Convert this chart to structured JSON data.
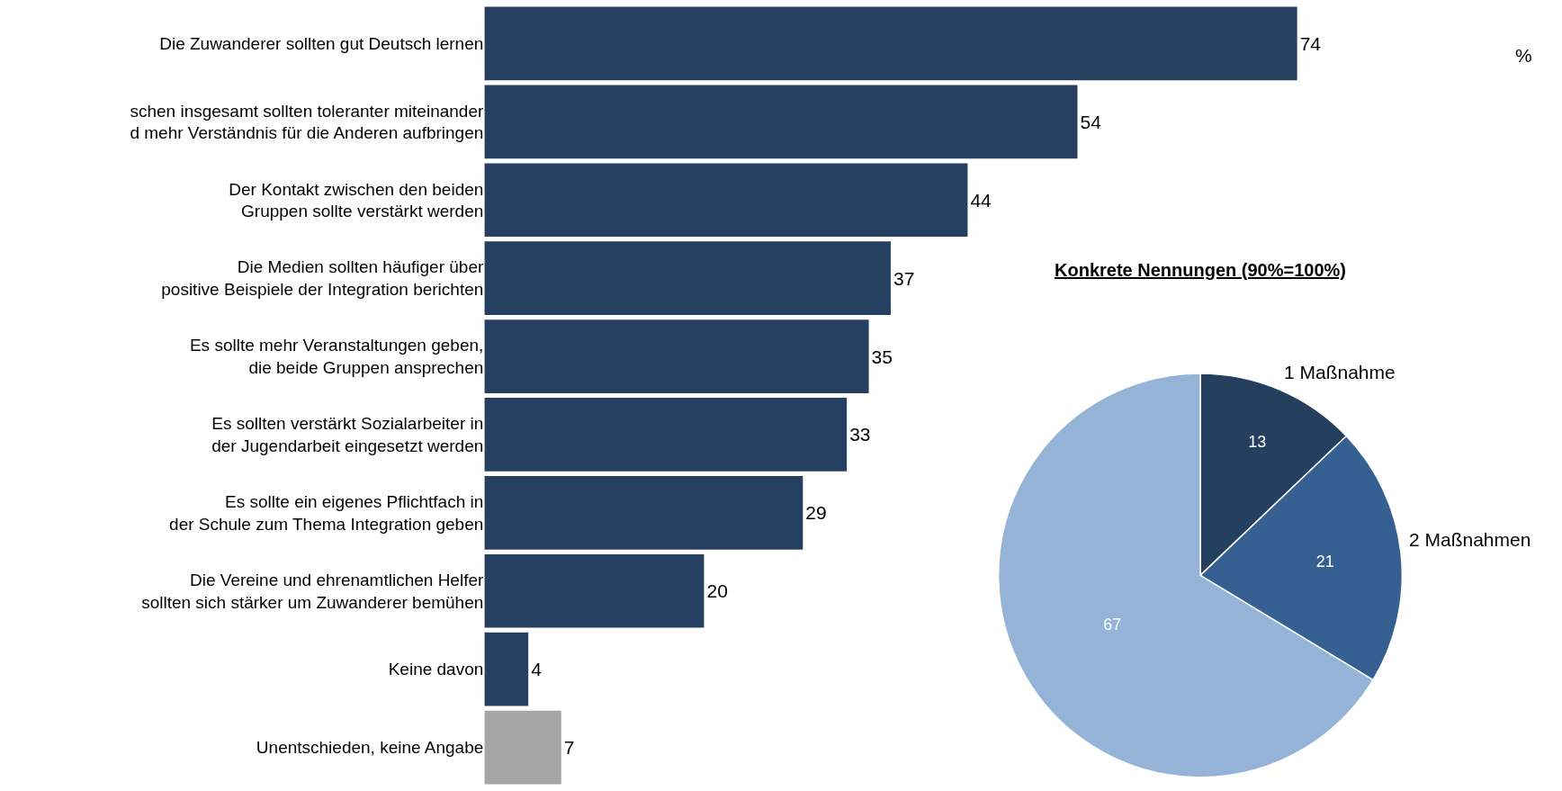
{
  "chart_data": [
    {
      "type": "bar",
      "orientation": "horizontal",
      "categories": [
        "Die Zuwanderer sollten gut Deutsch lernen",
        "schen insgesamt sollten toleranter miteinander\nd mehr Verständnis für die Anderen aufbringen",
        "Der Kontakt zwischen den beiden\nGruppen sollte verstärkt werden",
        "Die Medien sollten häufiger über\npositive Beispiele der Integration berichten",
        "Es sollte mehr Veranstaltungen geben,\ndie beide Gruppen ansprechen",
        "Es sollten verstärkt Sozialarbeiter in\nder Jugendarbeit eingesetzt werden",
        "Es sollte ein eigenes Pflichtfach in\nder Schule zum Thema Integration geben",
        "Die Vereine und ehrenamtlichen Helfer\nsollten sich stärker um Zuwanderer bemühen",
        "Keine davon",
        "Unentschieden, keine Angabe"
      ],
      "values": [
        74,
        54,
        44,
        37,
        35,
        33,
        29,
        20,
        4,
        7
      ],
      "colors": [
        "#264061",
        "#264061",
        "#264061",
        "#264061",
        "#264061",
        "#264061",
        "#264061",
        "#264061",
        "#264061",
        "#a6a6a6"
      ],
      "data_labels": true,
      "annotations": [
        "%"
      ]
    },
    {
      "type": "pie",
      "title": "Konkrete Nennungen (90%=100%)",
      "categories": [
        "1 Maßnahme",
        "2 Maßnahmen",
        null
      ],
      "values": [
        13,
        21,
        67
      ],
      "colors": [
        "#253f5f",
        "#366092",
        "#95b3d7"
      ],
      "data_labels": true
    }
  ]
}
